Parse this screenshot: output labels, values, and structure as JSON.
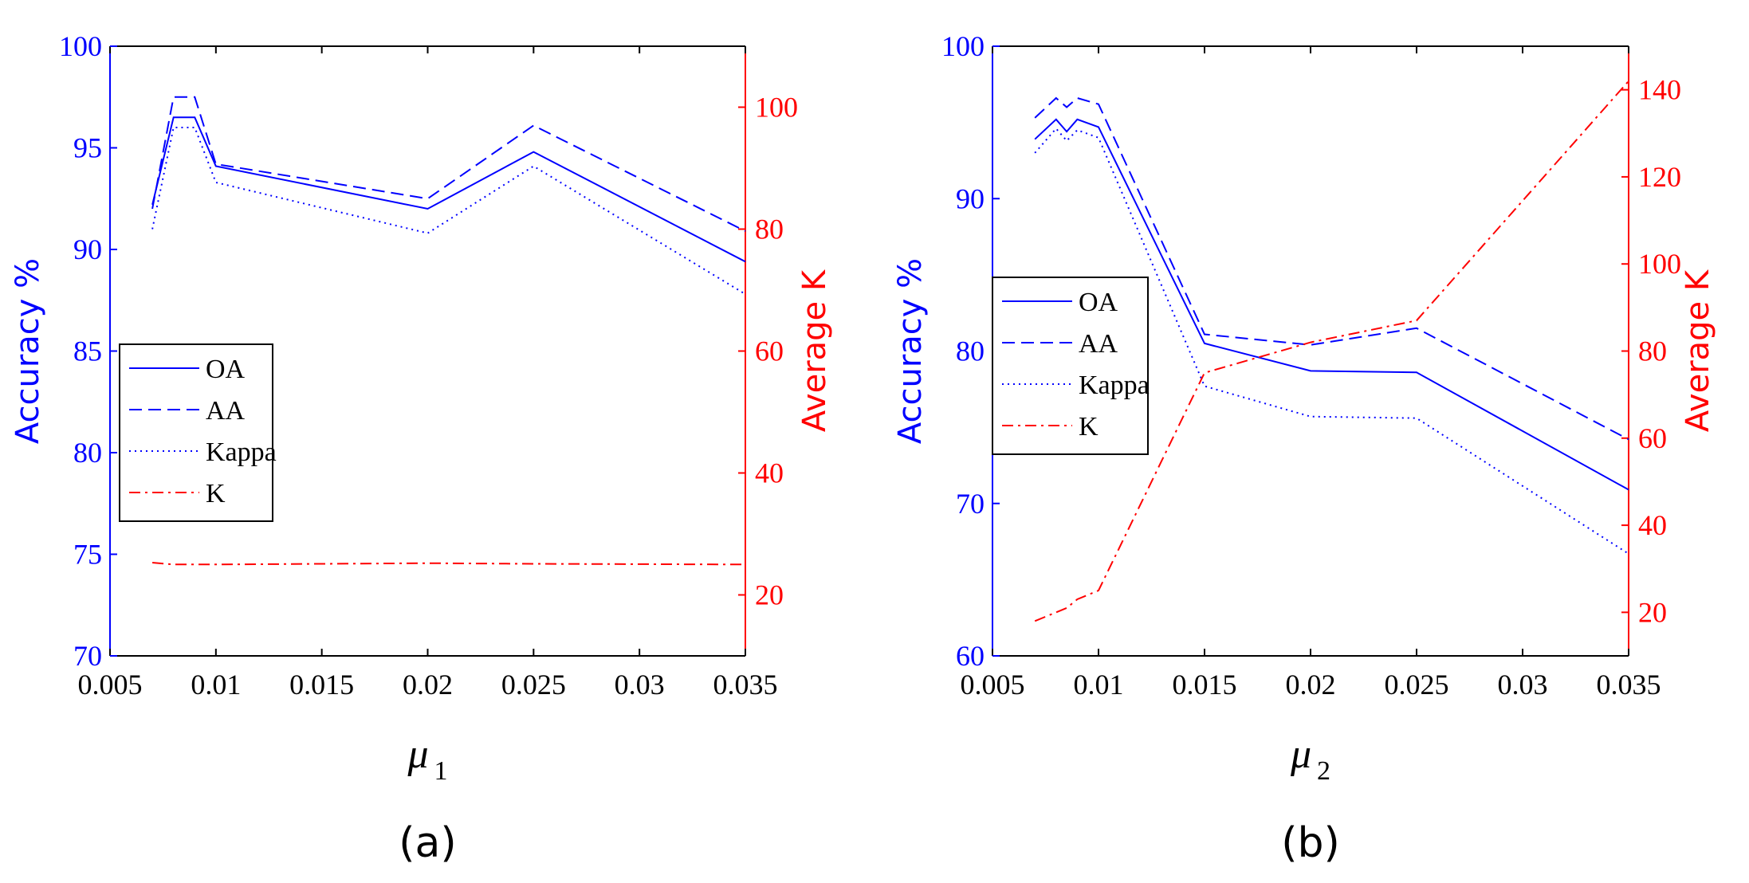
{
  "chart_data": [
    {
      "type": "line",
      "panel_label": "(a)",
      "xlabel": "μ",
      "xlabel_sub": "1",
      "ylabel_left": "Accuracy %",
      "ylabel_right": "Average K",
      "xlim": [
        0.005,
        0.035
      ],
      "ylim_left": [
        70,
        100
      ],
      "ylim_right": [
        10,
        110
      ],
      "xticks": [
        "0.005",
        "0.01",
        "0.015",
        "0.02",
        "0.025",
        "0.03",
        "0.035"
      ],
      "yticks_left": [
        "70",
        "75",
        "80",
        "85",
        "90",
        "95",
        "100"
      ],
      "yticks_right": [
        "20",
        "40",
        "60",
        "80",
        "100"
      ],
      "legend": [
        "OA",
        "AA",
        "Kappa",
        "K"
      ],
      "legend_position": "center-left",
      "x": [
        0.007,
        0.008,
        0.009,
        0.01,
        0.02,
        0.025,
        0.035
      ],
      "series": [
        {
          "name": "OA",
          "axis": "left",
          "style": "solid",
          "color": "#0000ff",
          "values": [
            92.2,
            96.5,
            96.5,
            94.1,
            92.0,
            94.8,
            89.4
          ]
        },
        {
          "name": "AA",
          "axis": "left",
          "style": "dashed",
          "color": "#0000ff",
          "values": [
            92.0,
            97.5,
            97.5,
            94.2,
            92.5,
            96.1,
            90.9
          ]
        },
        {
          "name": "Kappa",
          "axis": "left",
          "style": "dotted",
          "color": "#0000ff",
          "values": [
            91.0,
            96.0,
            96.0,
            93.3,
            90.8,
            94.1,
            87.8
          ]
        },
        {
          "name": "K",
          "axis": "right",
          "style": "dashdot",
          "color": "#ff0000",
          "values": [
            25.3,
            25.0,
            25.0,
            25.0,
            25.2,
            25.1,
            25.0
          ]
        }
      ]
    },
    {
      "type": "line",
      "panel_label": "(b)",
      "xlabel": "μ",
      "xlabel_sub": "2",
      "ylabel_left": "Accuracy %",
      "ylabel_right": "Average K",
      "xlim": [
        0.005,
        0.035
      ],
      "ylim_left": [
        60,
        100
      ],
      "ylim_right": [
        10,
        150
      ],
      "xticks": [
        "0.005",
        "0.01",
        "0.015",
        "0.02",
        "0.025",
        "0.03",
        "0.035"
      ],
      "yticks_left": [
        "60",
        "70",
        "80",
        "90",
        "100"
      ],
      "yticks_right": [
        "20",
        "40",
        "60",
        "80",
        "100",
        "120",
        "140"
      ],
      "legend": [
        "OA",
        "AA",
        "Kappa",
        "K"
      ],
      "legend_position": "center-left",
      "x": [
        0.007,
        0.008,
        0.0085,
        0.009,
        0.01,
        0.015,
        0.02,
        0.025,
        0.035
      ],
      "series": [
        {
          "name": "OA",
          "axis": "left",
          "style": "solid",
          "color": "#0000ff",
          "values": [
            93.9,
            95.2,
            94.4,
            95.2,
            94.7,
            80.5,
            78.7,
            78.6,
            70.9
          ]
        },
        {
          "name": "AA",
          "axis": "left",
          "style": "dashed",
          "color": "#0000ff",
          "values": [
            95.3,
            96.6,
            96.0,
            96.6,
            96.2,
            81.1,
            80.4,
            81.5,
            74.2
          ]
        },
        {
          "name": "Kappa",
          "axis": "left",
          "style": "dotted",
          "color": "#0000ff",
          "values": [
            93.0,
            94.6,
            93.8,
            94.5,
            94.0,
            77.7,
            75.7,
            75.6,
            66.7
          ]
        },
        {
          "name": "K",
          "axis": "right",
          "style": "dashdot",
          "color": "#ff0000",
          "values": [
            18.0,
            20.0,
            21.0,
            23.0,
            25.0,
            75.0,
            82.0,
            87.0,
            142.0
          ]
        }
      ]
    }
  ],
  "colors": {
    "left_axis": "#0000ff",
    "right_axis": "#ff0000",
    "frame": "#000000"
  }
}
